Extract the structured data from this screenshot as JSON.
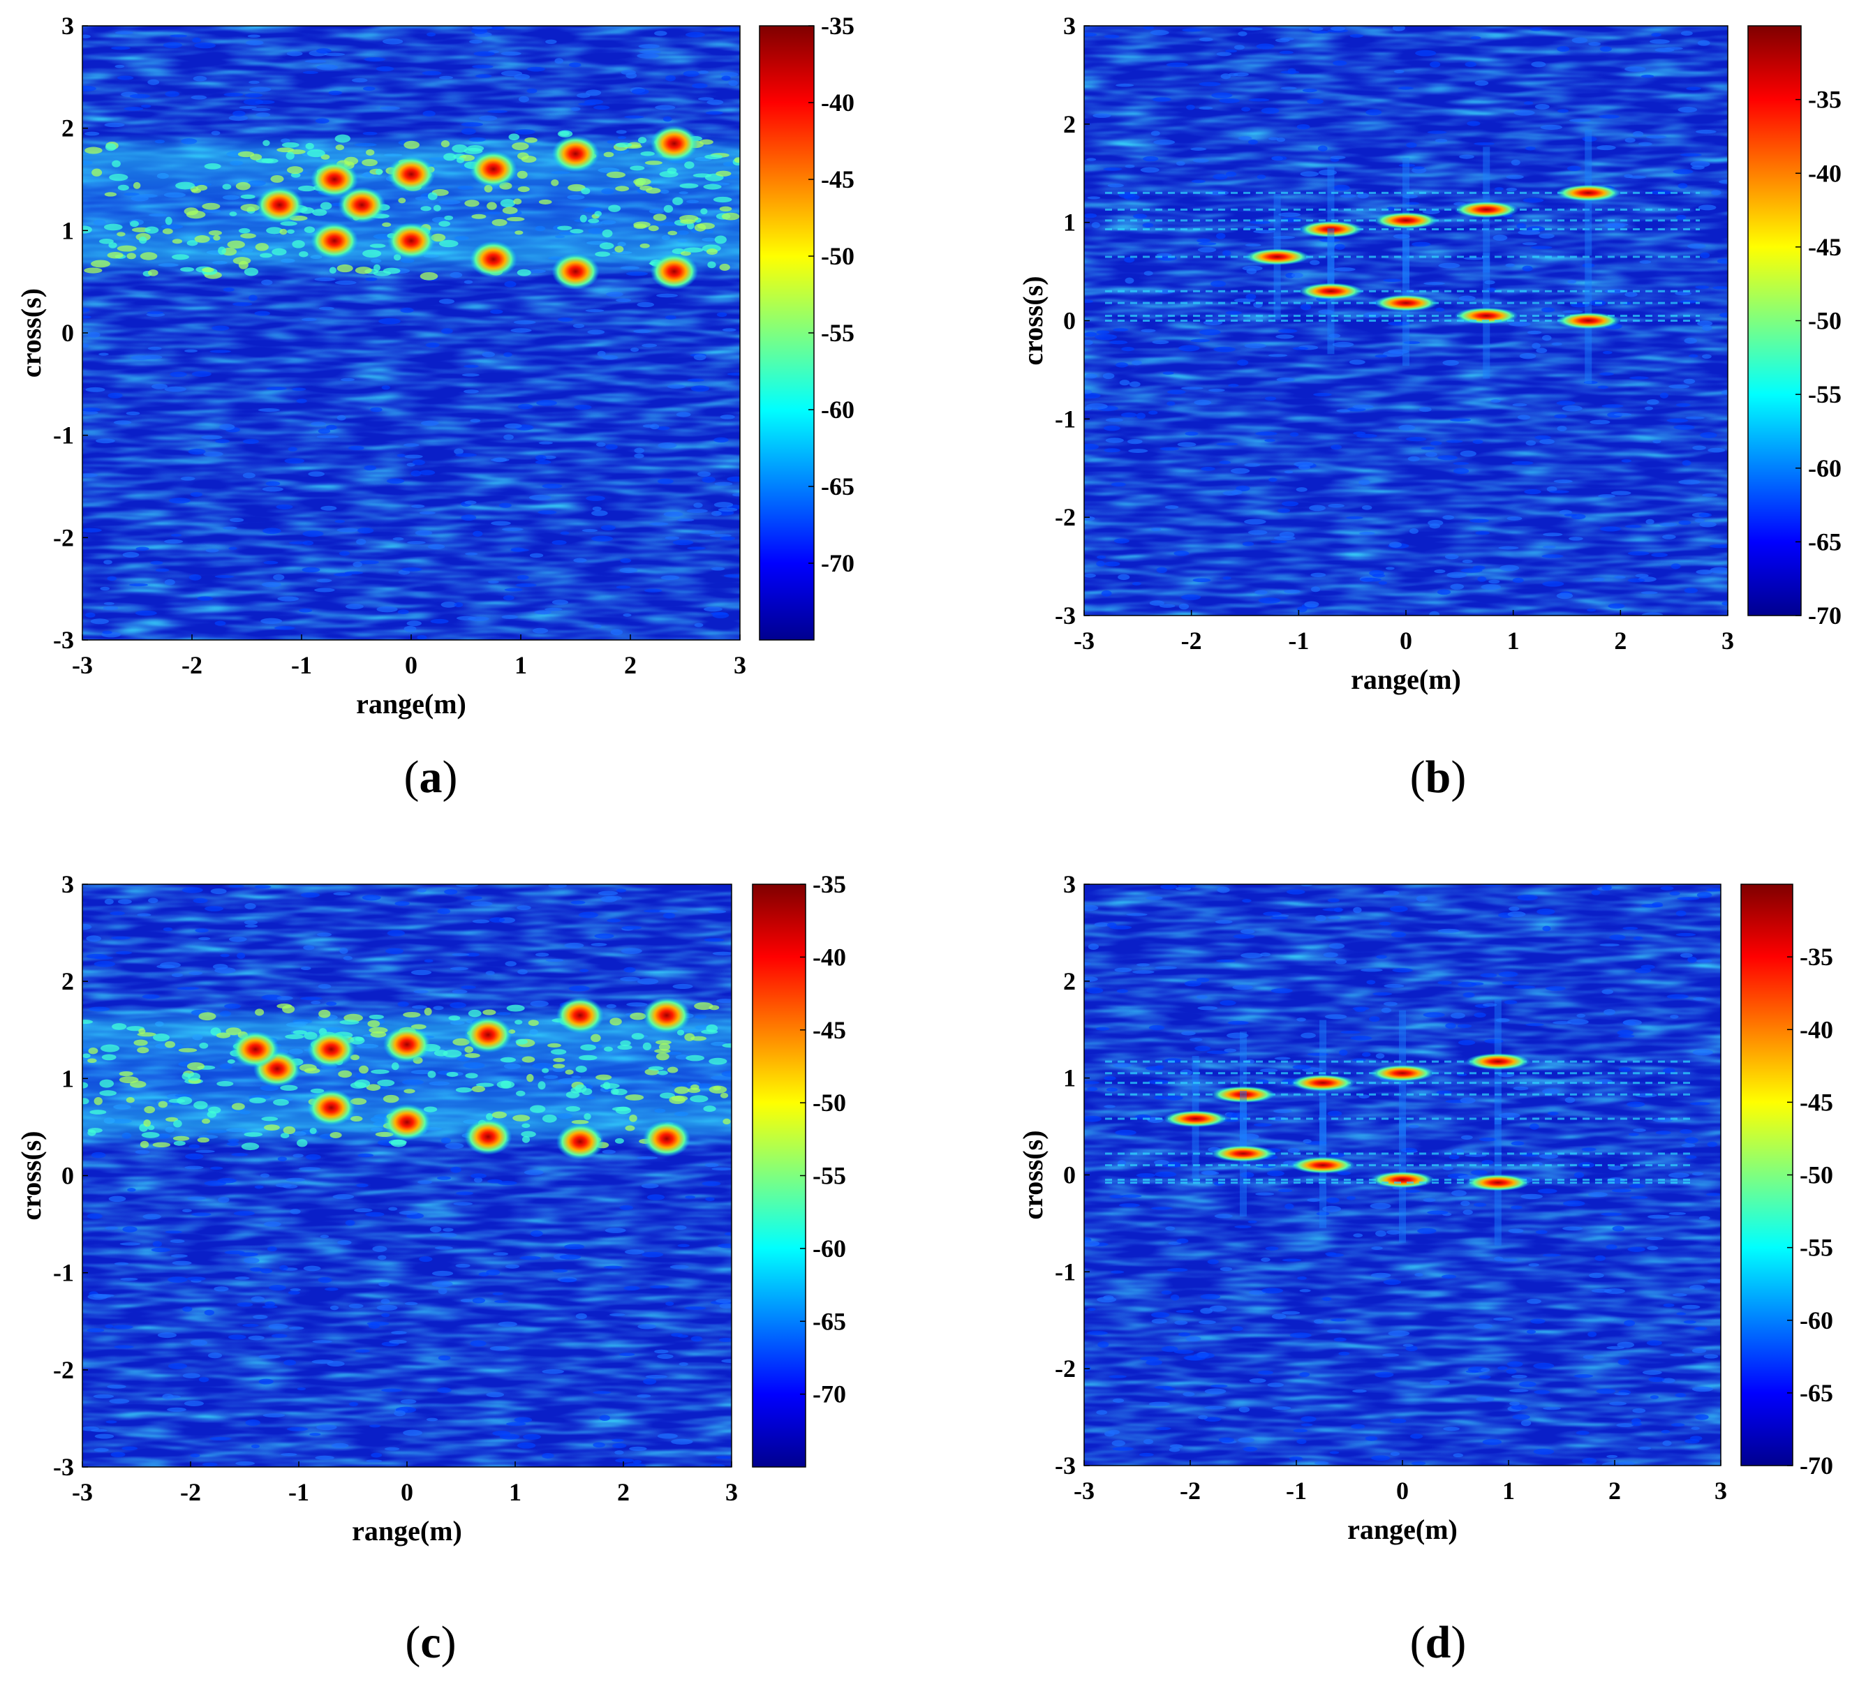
{
  "figure": {
    "panels": [
      {
        "id": "a",
        "label_open": "(",
        "letter": "a",
        "label_close": ")"
      },
      {
        "id": "b",
        "label_open": "(",
        "letter": "b",
        "label_close": ")"
      },
      {
        "id": "c",
        "label_open": "(",
        "letter": "c",
        "label_close": ")"
      },
      {
        "id": "d",
        "label_open": "(",
        "letter": "d",
        "label_close": ")"
      }
    ]
  },
  "colormap": "jet",
  "chart_data": [
    {
      "panel": "a",
      "type": "heatmap",
      "xlabel": "range(m)",
      "ylabel": "cross(s)",
      "xlim": [
        -3,
        3
      ],
      "ylim": [
        -3,
        3
      ],
      "xticks": [
        -3,
        -2,
        -1,
        0,
        1,
        2,
        3
      ],
      "yticks": [
        -3,
        -2,
        -1,
        0,
        1,
        2,
        3
      ],
      "colorbar": {
        "range": [
          -75,
          -35
        ],
        "ticks": [
          -35,
          -40,
          -45,
          -50,
          -55,
          -60,
          -65,
          -70
        ]
      },
      "bands": [
        {
          "y_min": 0.55,
          "y_max": 1.95
        }
      ],
      "targets": [
        {
          "x": -1.2,
          "y": 1.25
        },
        {
          "x": -0.7,
          "y": 1.5
        },
        {
          "x": -0.45,
          "y": 1.25
        },
        {
          "x": 0.0,
          "y": 1.55
        },
        {
          "x": 0.75,
          "y": 1.6
        },
        {
          "x": 1.5,
          "y": 1.75
        },
        {
          "x": 2.4,
          "y": 1.85
        },
        {
          "x": -0.7,
          "y": 0.9
        },
        {
          "x": 0.0,
          "y": 0.9
        },
        {
          "x": 0.75,
          "y": 0.72
        },
        {
          "x": 1.5,
          "y": 0.6
        },
        {
          "x": 2.4,
          "y": 0.6
        }
      ]
    },
    {
      "panel": "b",
      "type": "heatmap",
      "xlabel": "range(m)",
      "ylabel": "cross(s)",
      "xlim": [
        -3,
        3
      ],
      "ylim": [
        -3,
        3
      ],
      "xticks": [
        -3,
        -2,
        -1,
        0,
        1,
        2,
        3
      ],
      "yticks": [
        -3,
        -2,
        -1,
        0,
        1,
        2,
        3
      ],
      "colorbar": {
        "range": [
          -70,
          -30
        ],
        "ticks": [
          -35,
          -40,
          -45,
          -50,
          -55,
          -60,
          -65,
          -70
        ]
      },
      "bands": [],
      "targets": [
        {
          "x": -1.2,
          "y": 0.65
        },
        {
          "x": -0.7,
          "y": 0.93
        },
        {
          "x": 0.0,
          "y": 1.02
        },
        {
          "x": 0.75,
          "y": 1.13
        },
        {
          "x": 1.7,
          "y": 1.3
        },
        {
          "x": -0.7,
          "y": 0.3
        },
        {
          "x": 0.0,
          "y": 0.18
        },
        {
          "x": 0.75,
          "y": 0.05
        },
        {
          "x": 1.7,
          "y": 0.0
        }
      ]
    },
    {
      "panel": "c",
      "type": "heatmap",
      "xlabel": "range(m)",
      "ylabel": "cross(s)",
      "xlim": [
        -3,
        3
      ],
      "ylim": [
        -3,
        3
      ],
      "xticks": [
        -3,
        -2,
        -1,
        0,
        1,
        2,
        3
      ],
      "yticks": [
        -3,
        -2,
        -1,
        0,
        1,
        2,
        3
      ],
      "colorbar": {
        "range": [
          -75,
          -35
        ],
        "ticks": [
          -35,
          -40,
          -45,
          -50,
          -55,
          -60,
          -65,
          -70
        ]
      },
      "bands": [
        {
          "y_min": 0.3,
          "y_max": 1.75
        }
      ],
      "targets": [
        {
          "x": -1.2,
          "y": 1.1
        },
        {
          "x": -1.4,
          "y": 1.3
        },
        {
          "x": -0.7,
          "y": 1.3
        },
        {
          "x": 0.0,
          "y": 1.35
        },
        {
          "x": 0.75,
          "y": 1.45
        },
        {
          "x": 1.6,
          "y": 1.65
        },
        {
          "x": 2.4,
          "y": 1.65
        },
        {
          "x": -0.7,
          "y": 0.7
        },
        {
          "x": 0.0,
          "y": 0.55
        },
        {
          "x": 0.75,
          "y": 0.4
        },
        {
          "x": 1.6,
          "y": 0.35
        },
        {
          "x": 2.4,
          "y": 0.38
        }
      ]
    },
    {
      "panel": "d",
      "type": "heatmap",
      "xlabel": "range(m)",
      "ylabel": "cross(s)",
      "xlim": [
        -3,
        3
      ],
      "ylim": [
        -3,
        3
      ],
      "xticks": [
        -3,
        -2,
        -1,
        0,
        1,
        2,
        3
      ],
      "yticks": [
        -3,
        -2,
        -1,
        0,
        1,
        2,
        3
      ],
      "colorbar": {
        "range": [
          -70,
          -30
        ],
        "ticks": [
          -35,
          -40,
          -45,
          -50,
          -55,
          -60,
          -65,
          -70
        ]
      },
      "bands": [],
      "targets": [
        {
          "x": -1.95,
          "y": 0.58
        },
        {
          "x": -1.5,
          "y": 0.83
        },
        {
          "x": -0.75,
          "y": 0.95
        },
        {
          "x": 0.0,
          "y": 1.05
        },
        {
          "x": 0.9,
          "y": 1.17
        },
        {
          "x": -1.5,
          "y": 0.22
        },
        {
          "x": -0.75,
          "y": 0.1
        },
        {
          "x": 0.0,
          "y": -0.05
        },
        {
          "x": 0.9,
          "y": -0.08
        }
      ]
    }
  ]
}
